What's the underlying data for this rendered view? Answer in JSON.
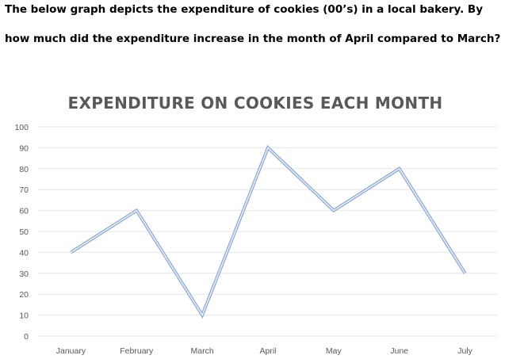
{
  "question": {
    "line1": "The below graph depicts the expenditure of cookies (00’s) in a local bakery. By",
    "line2": "how much did the expenditure increase in the month of April compared to March?"
  },
  "chart_data": {
    "type": "line",
    "title": "EXPENDITURE ON COOKIES EACH MONTH",
    "categories": [
      "January",
      "February",
      "March",
      "April",
      "May",
      "June",
      "July"
    ],
    "series": [
      {
        "values": [
          40,
          60,
          10,
          90,
          60,
          80,
          30
        ]
      }
    ],
    "ylim": [
      0,
      100
    ],
    "yticks": [
      0,
      10,
      20,
      30,
      40,
      50,
      60,
      70,
      80,
      90,
      100
    ],
    "grid": true,
    "legend": "none",
    "line_color": "#8faadc",
    "line_core_color": "#ffffff"
  }
}
